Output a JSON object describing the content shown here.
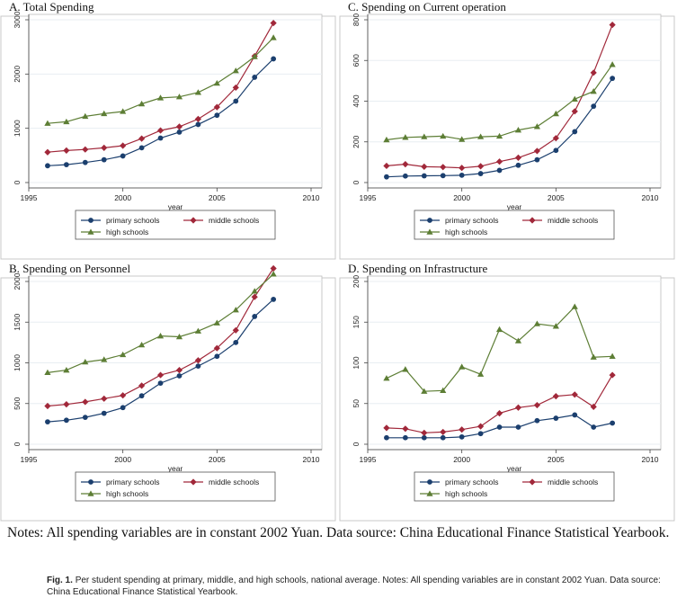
{
  "notes": "Notes: All spending variables are in constant 2002 Yuan. Data source: China Educational Finance Statistical Yearbook.",
  "caption": {
    "label": "Fig. 1.",
    "text": "Per student spending at primary, middle, and high schools, national average. Notes: All spending variables are in constant 2002 Yuan. Data source: China Educational Finance Statistical Yearbook."
  },
  "series_style": [
    {
      "name": "primary schools",
      "color": "#1b3f6e",
      "marker": "circle"
    },
    {
      "name": "middle schools",
      "color": "#a1283a",
      "marker": "diamond"
    },
    {
      "name": "high schools",
      "color": "#5d7e35",
      "marker": "triangle"
    }
  ],
  "chart_data": [
    {
      "id": "A",
      "type": "line",
      "title": "A. Total Spending",
      "xlabel": "year",
      "ylabel": "",
      "xlim": [
        1995,
        2010
      ],
      "ylim": [
        0,
        3000
      ],
      "xticks": [
        1995,
        2000,
        2005,
        2010
      ],
      "yticks": [
        0,
        1000,
        2000,
        3000
      ],
      "x": [
        1996,
        1997,
        1998,
        1999,
        2000,
        2001,
        2002,
        2003,
        2004,
        2005,
        2006,
        2007,
        2008
      ],
      "series": [
        {
          "name": "primary schools",
          "values": [
            310,
            330,
            370,
            420,
            490,
            640,
            820,
            930,
            1070,
            1240,
            1500,
            1940,
            2280
          ]
        },
        {
          "name": "middle schools",
          "values": [
            560,
            590,
            610,
            640,
            680,
            810,
            960,
            1030,
            1170,
            1390,
            1750,
            2330,
            2940
          ]
        },
        {
          "name": "high schools",
          "values": [
            1090,
            1120,
            1220,
            1270,
            1310,
            1450,
            1560,
            1580,
            1660,
            1830,
            2060,
            2320,
            2670
          ]
        }
      ],
      "legend": "bottom"
    },
    {
      "id": "C",
      "type": "line",
      "title": "C. Spending on Current operation",
      "xlabel": "year",
      "ylabel": "",
      "xlim": [
        1995,
        2010
      ],
      "ylim": [
        0,
        800
      ],
      "xticks": [
        1995,
        2000,
        2005,
        2010
      ],
      "yticks": [
        0,
        200,
        400,
        600,
        800
      ],
      "x": [
        1996,
        1997,
        1998,
        1999,
        2000,
        2001,
        2002,
        2003,
        2004,
        2005,
        2006,
        2007,
        2008
      ],
      "series": [
        {
          "name": "primary schools",
          "values": [
            28,
            32,
            33,
            34,
            36,
            44,
            60,
            85,
            112,
            158,
            250,
            375,
            512
          ]
        },
        {
          "name": "middle schools",
          "values": [
            82,
            90,
            78,
            76,
            72,
            80,
            103,
            122,
            155,
            218,
            350,
            540,
            775
          ]
        },
        {
          "name": "high schools",
          "values": [
            210,
            222,
            225,
            228,
            212,
            225,
            228,
            258,
            275,
            338,
            410,
            448,
            580
          ]
        }
      ],
      "legend": "bottom"
    },
    {
      "id": "B",
      "type": "line",
      "title": "B. Spending on Personnel",
      "xlabel": "year",
      "ylabel": "",
      "xlim": [
        1995,
        2010
      ],
      "ylim": [
        0,
        2000
      ],
      "xticks": [
        1995,
        2000,
        2005,
        2010
      ],
      "yticks": [
        0,
        500,
        1000,
        1500,
        2000
      ],
      "x": [
        1996,
        1997,
        1998,
        1999,
        2000,
        2001,
        2002,
        2003,
        2004,
        2005,
        2006,
        2007,
        2008
      ],
      "series": [
        {
          "name": "primary schools",
          "values": [
            275,
            295,
            330,
            380,
            450,
            595,
            750,
            840,
            960,
            1080,
            1250,
            1570,
            1780
          ]
        },
        {
          "name": "middle schools",
          "values": [
            470,
            490,
            520,
            560,
            600,
            720,
            850,
            910,
            1030,
            1180,
            1400,
            1810,
            2160
          ]
        },
        {
          "name": "high schools",
          "values": [
            880,
            910,
            1010,
            1040,
            1100,
            1220,
            1330,
            1320,
            1390,
            1490,
            1650,
            1880,
            2090
          ]
        }
      ],
      "legend": "bottom"
    },
    {
      "id": "D",
      "type": "line",
      "title": "D. Spending on Infrastructure",
      "xlabel": "year",
      "ylabel": "",
      "xlim": [
        1995,
        2010
      ],
      "ylim": [
        0,
        200
      ],
      "xticks": [
        1995,
        2000,
        2005,
        2010
      ],
      "yticks": [
        0,
        50,
        100,
        150,
        200
      ],
      "x": [
        1996,
        1997,
        1998,
        1999,
        2000,
        2001,
        2002,
        2003,
        2004,
        2005,
        2006,
        2007,
        2008
      ],
      "series": [
        {
          "name": "primary schools",
          "values": [
            8,
            8,
            8,
            8,
            9,
            13,
            21,
            21,
            29,
            32,
            36,
            21,
            26
          ]
        },
        {
          "name": "middle schools",
          "values": [
            20,
            19,
            14,
            15,
            18,
            22,
            38,
            45,
            48,
            59,
            61,
            46,
            85
          ]
        },
        {
          "name": "high schools",
          "values": [
            81,
            92,
            65,
            66,
            95,
            86,
            141,
            127,
            148,
            145,
            169,
            107,
            108
          ]
        }
      ],
      "legend": "bottom"
    }
  ]
}
